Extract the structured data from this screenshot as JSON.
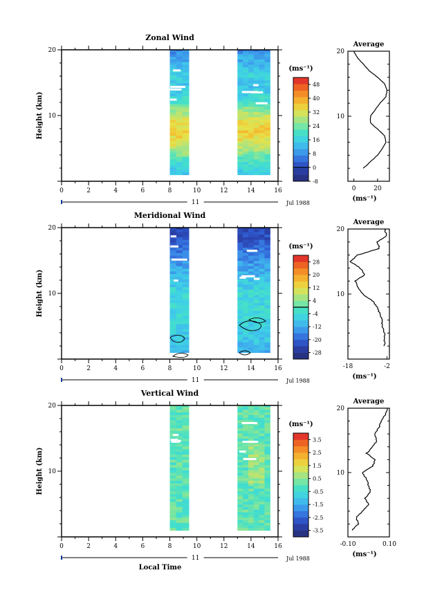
{
  "chart_data": [
    {
      "type": "heatmap",
      "title": "Zonal Wind",
      "ylabel": "Height (km)",
      "ylim": [
        0,
        20
      ],
      "y_ticks": [
        "20",
        "10"
      ],
      "xlim": [
        0,
        16
      ],
      "x_ticks": [
        "0",
        "2",
        "4",
        "6",
        "8",
        "10",
        "12",
        "14",
        "16"
      ],
      "date_day": "11",
      "date_label": "Jul 1988",
      "colorbar_unit": "(ms⁻¹)",
      "colorbar_ticks": [
        "48",
        "40",
        "32",
        "24",
        "16",
        "8",
        "0",
        "-8"
      ],
      "colorbar_range": [
        -8,
        52
      ],
      "zero_line": 0,
      "data_intervals_hours": [
        [
          8.0,
          9.4
        ],
        [
          13.0,
          15.4
        ]
      ],
      "average_profile": {
        "title": "Average",
        "xlabel": "(ms⁻¹)",
        "x_ticks": [
          "0",
          "20"
        ],
        "xlim": [
          -5,
          30
        ],
        "y_ticks": [
          "20",
          "10"
        ],
        "heights_km": [
          2,
          3,
          4,
          5,
          6,
          7,
          8,
          9,
          10,
          11,
          12,
          13,
          14,
          15,
          16,
          17,
          18,
          19,
          20
        ],
        "values": [
          8,
          14,
          20,
          24,
          27,
          26,
          20,
          14,
          14,
          18,
          22,
          27,
          28,
          26,
          20,
          13,
          8,
          3,
          0
        ]
      }
    },
    {
      "type": "heatmap",
      "title": "Meridional Wind",
      "ylabel": "Height (km)",
      "ylim": [
        0,
        20
      ],
      "y_ticks": [
        "20",
        "10"
      ],
      "xlim": [
        0,
        16
      ],
      "x_ticks": [
        "0",
        "2",
        "4",
        "6",
        "8",
        "10",
        "12",
        "14",
        "16"
      ],
      "date_day": "11",
      "date_label": "Jul 1988",
      "colorbar_unit": "(ms⁻¹)",
      "colorbar_ticks": [
        "28",
        "20",
        "12",
        "4",
        "-4",
        "-12",
        "-20",
        "-28"
      ],
      "colorbar_range": [
        -32,
        32
      ],
      "zero_line": 0,
      "data_intervals_hours": [
        [
          8.0,
          9.4
        ],
        [
          13.0,
          15.4
        ]
      ],
      "average_profile": {
        "title": "Average",
        "xlabel": "(ms⁻¹)",
        "x_ticks": [
          "-18",
          "-2"
        ],
        "xlim": [
          -18,
          -1
        ],
        "y_ticks": [
          "20",
          "10"
        ],
        "heights_km": [
          2,
          3,
          4,
          5,
          6,
          7,
          8,
          9,
          10,
          11,
          12,
          13,
          14,
          15,
          16,
          17,
          18,
          19,
          20
        ],
        "values": [
          -3,
          -3,
          -3,
          -4,
          -4,
          -5,
          -6,
          -8,
          -12,
          -14,
          -15,
          -11,
          -13,
          -17,
          -14,
          -5,
          -6,
          -2,
          -3
        ]
      }
    },
    {
      "type": "heatmap",
      "title": "Vertical Wind",
      "ylabel": "Height (km)",
      "ylim": [
        0,
        20
      ],
      "y_ticks": [
        "20",
        "10"
      ],
      "xlim": [
        0,
        16
      ],
      "x_ticks": [
        "0",
        "2",
        "4",
        "6",
        "8",
        "10",
        "12",
        "14",
        "16"
      ],
      "xlabel": "Local Time",
      "date_day": "11",
      "date_label": "Jul 1988",
      "colorbar_unit": "(ms⁻¹)",
      "colorbar_ticks": [
        "3.5",
        "2.5",
        "1.5",
        "0.5",
        "-0.5",
        "-1.5",
        "-2.5",
        "-3.5"
      ],
      "colorbar_range": [
        -4,
        4
      ],
      "data_intervals_hours": [
        [
          8.0,
          9.4
        ],
        [
          13.0,
          15.4
        ]
      ],
      "average_profile": {
        "title": "Average",
        "xlabel": "(ms⁻¹)",
        "x_ticks": [
          "-0.10",
          "0.10"
        ],
        "xlim": [
          -0.1,
          0.1
        ],
        "y_ticks": [
          "20",
          "10"
        ],
        "heights_km": [
          1,
          2,
          3,
          4,
          5,
          6,
          7,
          8,
          9,
          10,
          11,
          12,
          13,
          14,
          15,
          16,
          17,
          18,
          19,
          20
        ],
        "values": [
          -0.08,
          -0.05,
          -0.06,
          -0.03,
          0.0,
          -0.02,
          0.01,
          0.0,
          -0.01,
          -0.03,
          0.02,
          0.03,
          -0.01,
          0.02,
          0.04,
          0.03,
          0.05,
          0.06,
          0.08,
          0.09
        ]
      }
    }
  ]
}
